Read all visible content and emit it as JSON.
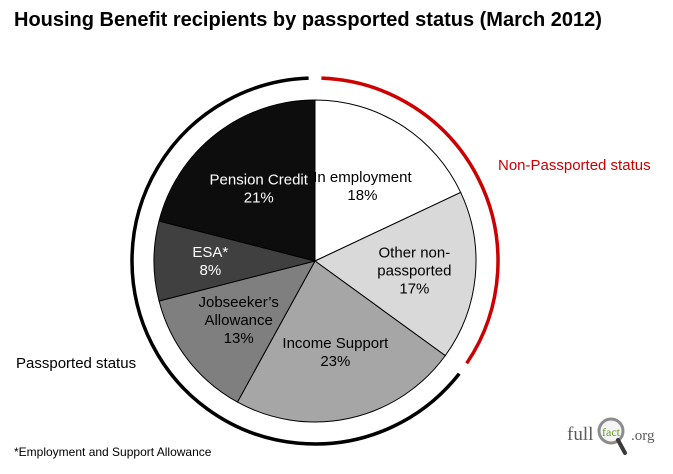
{
  "chart_data": {
    "type": "pie",
    "title": "Housing Benefit recipients by passported status (March 2012)",
    "slices": [
      {
        "label_lines": [
          "In employment",
          "18%"
        ],
        "value": 18,
        "color": "#ffffff",
        "text_color": "#000000"
      },
      {
        "label_lines": [
          "Other non-",
          "passported",
          "17%"
        ],
        "value": 17,
        "color": "#d9d9d9",
        "text_color": "#000000"
      },
      {
        "label_lines": [
          "Income Support",
          "23%"
        ],
        "value": 23,
        "color": "#a6a6a6",
        "text_color": "#000000"
      },
      {
        "label_lines": [
          "Jobseeker’s",
          "Allowance",
          "13%"
        ],
        "value": 13,
        "color": "#7f7f7f",
        "text_color": "#000000"
      },
      {
        "label_lines": [
          "ESA*",
          "8%"
        ],
        "value": 8,
        "color": "#404040",
        "text_color": "#ffffff"
      },
      {
        "label_lines": [
          "Pension Credit",
          "21%"
        ],
        "value": 21,
        "color": "#0d0d0d",
        "text_color": "#ffffff"
      }
    ],
    "groups": [
      {
        "name": "Non-Passported status",
        "color": "#cc0000",
        "slices": [
          "In employment",
          "Other non-passported"
        ]
      },
      {
        "name": "Passported status",
        "color": "#000000",
        "slices": [
          "Income Support",
          "Jobseeker’s Allowance",
          "ESA*",
          "Pension Credit"
        ]
      }
    ],
    "footnote": "*Employment and Support Allowance"
  },
  "logo": {
    "word": "full",
    "mark": "fact",
    "suffix": ".org"
  }
}
